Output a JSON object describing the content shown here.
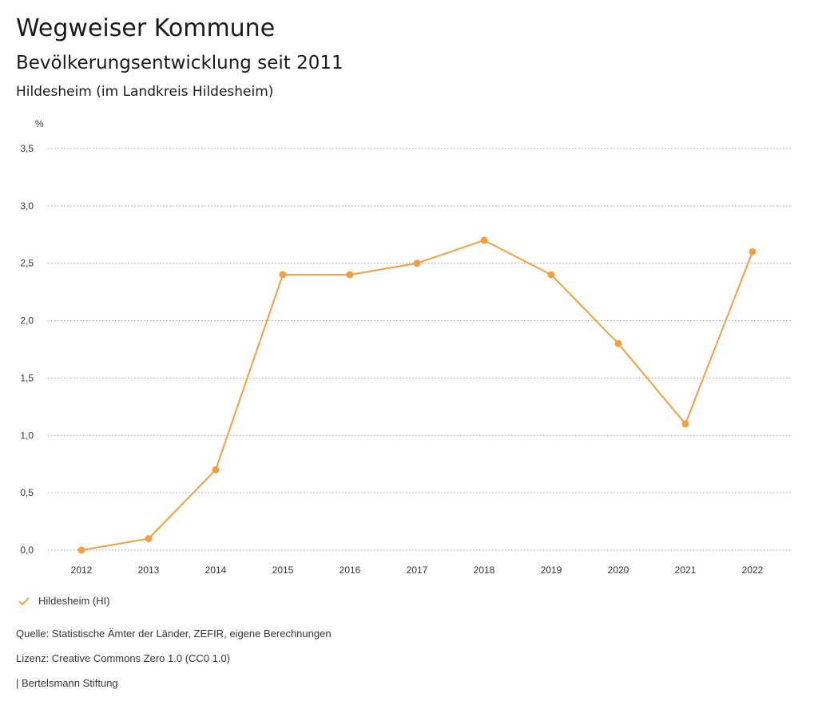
{
  "header": {
    "title": "Wegweiser Kommune",
    "subtitle": "Bevölkerungsentwicklung seit 2011",
    "region": "Hildesheim (im Landkreis Hildesheim)"
  },
  "chart_data": {
    "type": "line",
    "title": "Bevölkerungsentwicklung seit 2011",
    "xlabel": "",
    "ylabel": "%",
    "ylim": [
      0,
      3.5
    ],
    "yticks": [
      0,
      0.5,
      1.0,
      1.5,
      2.0,
      2.5,
      3.0,
      3.5
    ],
    "ytick_labels": [
      "0,0",
      "0,5",
      "1,0",
      "1,5",
      "2,0",
      "2,5",
      "3,0",
      "3,5"
    ],
    "categories": [
      "2012",
      "2013",
      "2014",
      "2015",
      "2016",
      "2017",
      "2018",
      "2019",
      "2020",
      "2021",
      "2022"
    ],
    "series": [
      {
        "name": "Hildesheim (HI)",
        "color": "#f0a040",
        "values": [
          0.0,
          0.1,
          0.7,
          2.4,
          2.4,
          2.5,
          2.7,
          2.4,
          1.8,
          1.1,
          2.6
        ]
      }
    ],
    "grid": true,
    "legend_position": "bottom-left"
  },
  "legend": {
    "label": "Hildesheim (HI)"
  },
  "footer": {
    "source": "Quelle: Statistische Ämter der Länder, ZEFIR, eigene Berechnungen",
    "license": "Lizenz: Creative Commons Zero 1.0 (CC0 1.0)",
    "publisher": "| Bertelsmann Stiftung"
  }
}
